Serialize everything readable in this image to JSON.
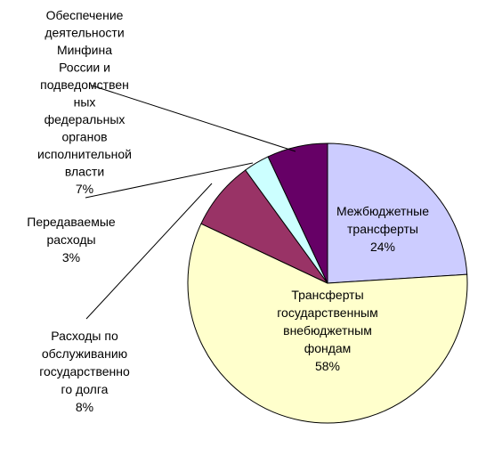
{
  "chart_data": {
    "type": "pie",
    "slices": [
      {
        "label": "Межбюджетные трансферты",
        "value": 24,
        "pct_text": "24%",
        "color": "#ccccff",
        "lines": [
          "Межбюджетные",
          "трансферты",
          "24%"
        ]
      },
      {
        "label": "Трансферты государственным внебюджетным фондам",
        "value": 58,
        "pct_text": "58%",
        "color": "#ffffcc",
        "lines": [
          "Трансферты",
          "государственным",
          "внебюджетным",
          "фондам",
          "58%"
        ]
      },
      {
        "label": "Расходы по обслуживанию государственного долга",
        "value": 8,
        "pct_text": "8%",
        "color": "#993366",
        "lines": [
          "Расходы по",
          "обслуживанию",
          "государственно",
          "го долга",
          "8%"
        ]
      },
      {
        "label": "Передаваемые расходы",
        "value": 3,
        "pct_text": "3%",
        "color": "#ccffff",
        "lines": [
          "Передаваемые",
          "расходы",
          "3%"
        ]
      },
      {
        "label": "Обеспечение деятельности Минфина России и подведомственных федеральных органов исполнительной власти",
        "value": 7,
        "pct_text": "7%",
        "color": "#660066",
        "lines": [
          "Обеспечение",
          "деятельности",
          "Минфина",
          "России и",
          "подведомствен",
          "ных",
          "федеральных",
          "органов",
          "исполнительной",
          "власти",
          "7%"
        ]
      }
    ],
    "start": "12 o'clock",
    "direction": "clockwise"
  }
}
